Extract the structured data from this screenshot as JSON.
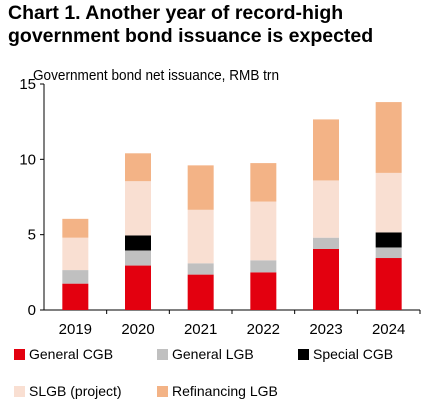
{
  "title_line1": "Chart 1. Another year of record-high",
  "title_line2": "government bond issuance is expected",
  "chart_data": {
    "type": "bar",
    "stacked": true,
    "ylabel": "Government bond net issuance, RMB trn",
    "ylim": [
      0,
      15
    ],
    "yticks": [
      0,
      5,
      10,
      15
    ],
    "categories": [
      "2019",
      "2020",
      "2021",
      "2022",
      "2023",
      "2024"
    ],
    "series": [
      {
        "name": "General CGB",
        "color": "#e3000f",
        "values": [
          1.75,
          2.95,
          2.35,
          2.5,
          4.05,
          3.45
        ]
      },
      {
        "name": "General LGB",
        "color": "#c0c0c0",
        "values": [
          0.9,
          1.0,
          0.75,
          0.8,
          0.75,
          0.7
        ]
      },
      {
        "name": "Special CGB",
        "color": "#000000",
        "values": [
          0,
          1.0,
          0,
          0,
          0,
          1.0
        ]
      },
      {
        "name": "SLGB (project)",
        "color": "#f9dfd2",
        "values": [
          2.15,
          3.6,
          3.55,
          3.9,
          3.8,
          3.95
        ]
      },
      {
        "name": "Refinancing LGB",
        "color": "#f3b386",
        "values": [
          1.25,
          1.85,
          2.95,
          2.55,
          4.05,
          4.7
        ]
      }
    ],
    "grid": false,
    "legend_position": "bottom"
  }
}
